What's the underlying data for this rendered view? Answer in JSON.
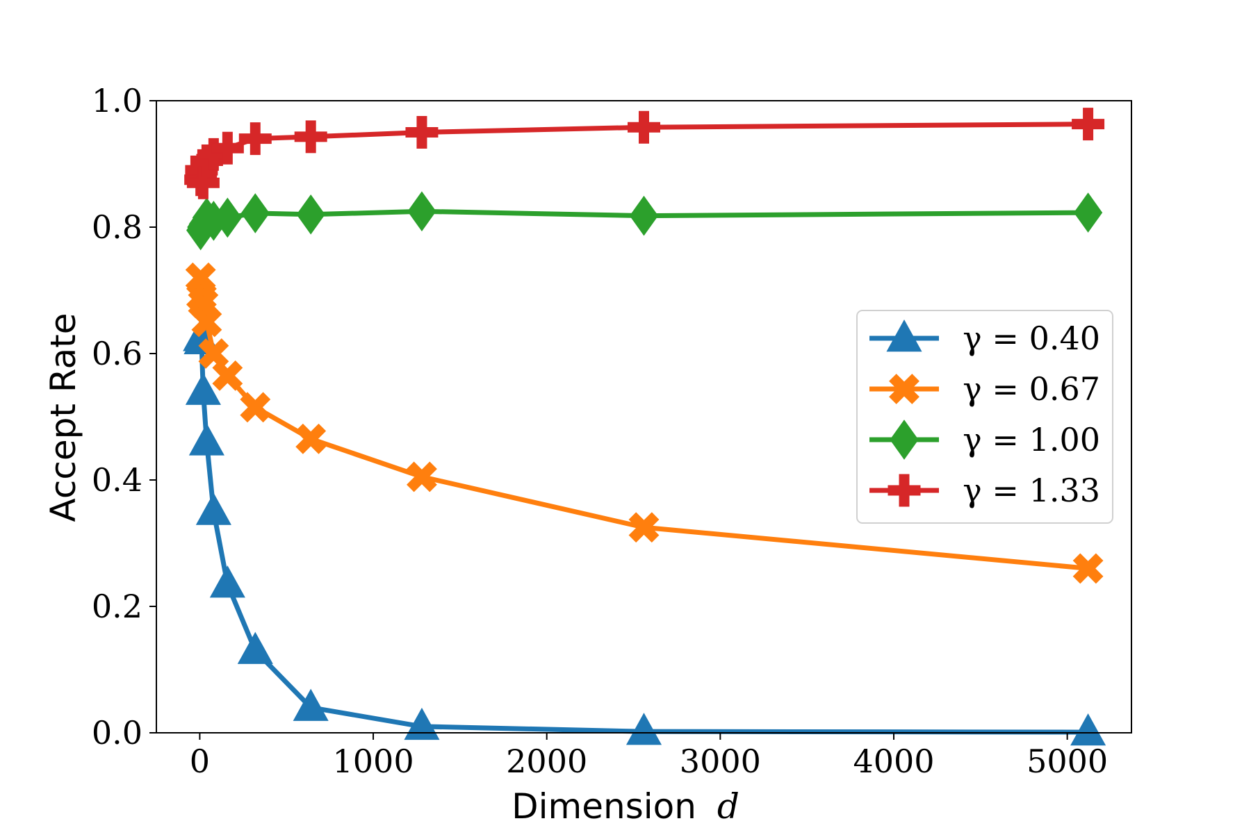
{
  "chart_data": {
    "type": "line",
    "xlabel": "Dimension",
    "xlabel_var": "d",
    "ylabel": "Accept Rate",
    "xlim": [
      -250,
      5370
    ],
    "ylim": [
      0.0,
      1.0
    ],
    "xticks": [
      0,
      1000,
      2000,
      3000,
      4000,
      5000
    ],
    "xtick_labels": [
      "0",
      "1000",
      "2000",
      "3000",
      "4000",
      "5000"
    ],
    "yticks": [
      0.0,
      0.2,
      0.4,
      0.6,
      0.8,
      1.0
    ],
    "ytick_labels": [
      "0.0",
      "0.2",
      "0.4",
      "0.6",
      "0.8",
      "1.0"
    ],
    "grid": false,
    "legend_position": "center-right",
    "x": [
      5,
      10,
      20,
      40,
      80,
      160,
      320,
      640,
      1280,
      2560,
      5120
    ],
    "series": [
      {
        "name": "γ = 0.40",
        "color": "#1f77b4",
        "marker": "triangle-up",
        "values": [
          0.625,
          0.62,
          0.54,
          0.46,
          0.35,
          0.235,
          0.13,
          0.04,
          0.01,
          0.002,
          0.001
        ]
      },
      {
        "name": "γ = 0.67",
        "color": "#ff7f0e",
        "marker": "x-filled",
        "values": [
          0.72,
          0.69,
          0.68,
          0.65,
          0.6,
          0.565,
          0.515,
          0.465,
          0.405,
          0.325,
          0.26
        ]
      },
      {
        "name": "γ = 1.00",
        "color": "#2ca02c",
        "marker": "diamond",
        "values": [
          0.795,
          0.8,
          0.805,
          0.815,
          0.81,
          0.815,
          0.822,
          0.82,
          0.825,
          0.818,
          0.823
        ]
      },
      {
        "name": "γ = 1.33",
        "color": "#d62728",
        "marker": "plus-filled",
        "values": [
          0.875,
          0.89,
          0.87,
          0.905,
          0.915,
          0.925,
          0.94,
          0.943,
          0.95,
          0.958,
          0.963
        ]
      }
    ]
  }
}
